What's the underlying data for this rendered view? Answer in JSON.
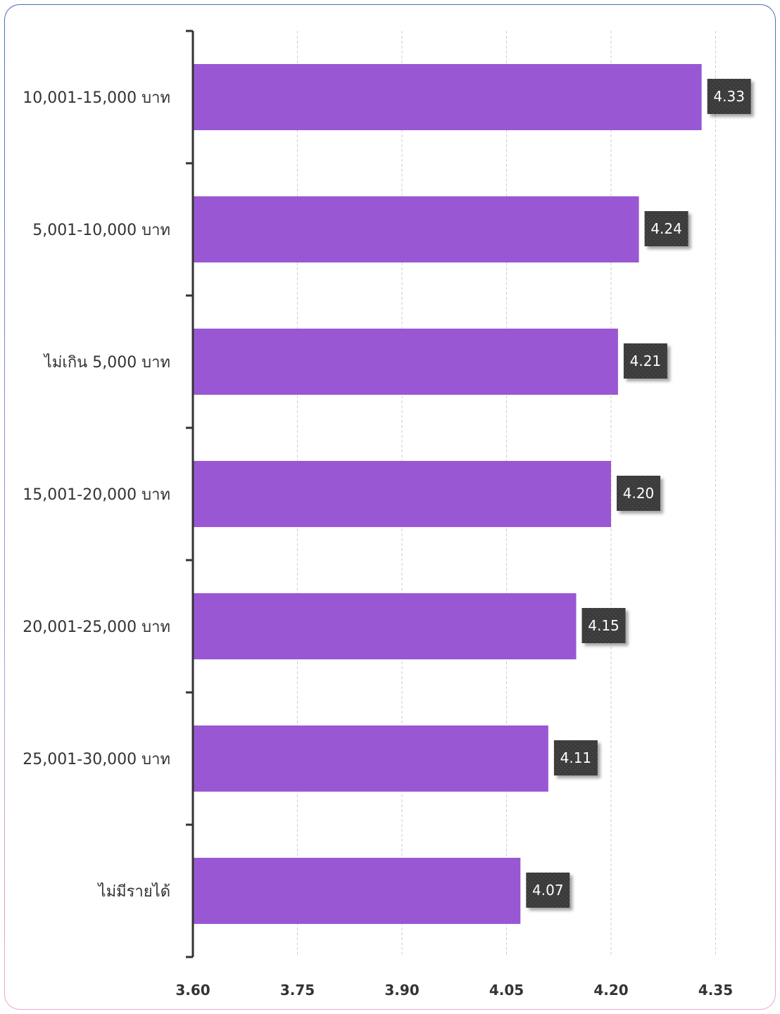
{
  "chart_data": {
    "type": "bar",
    "orientation": "horizontal",
    "categories": [
      "10,001-15,000 บาท",
      "5,001-10,000 บาท",
      "ไม่เกิน 5,000 บาท",
      "15,001-20,000 บาท",
      "20,001-25,000 บาท",
      "25,001-30,000 บาท",
      "ไม่มีรายได้"
    ],
    "values": [
      4.33,
      4.24,
      4.21,
      4.2,
      4.15,
      4.11,
      4.07
    ],
    "value_labels": [
      "4.33",
      "4.24",
      "4.21",
      "4.20",
      "4.15",
      "4.11",
      "4.07"
    ],
    "xlim": [
      3.6,
      4.4
    ],
    "xticks": [
      3.6,
      3.75,
      3.9,
      4.05,
      4.2,
      4.35
    ],
    "xtick_labels": [
      "3.60",
      "3.75",
      "3.90",
      "4.05",
      "4.20",
      "4.35"
    ],
    "grid": true,
    "title": "",
    "xlabel": "",
    "ylabel": "",
    "colors": {
      "bar": "#9a57d4",
      "label_box": "#3a3a3a",
      "label_text": "#ffffff",
      "axis": "#333333",
      "grid": "#cfcfcf"
    }
  }
}
